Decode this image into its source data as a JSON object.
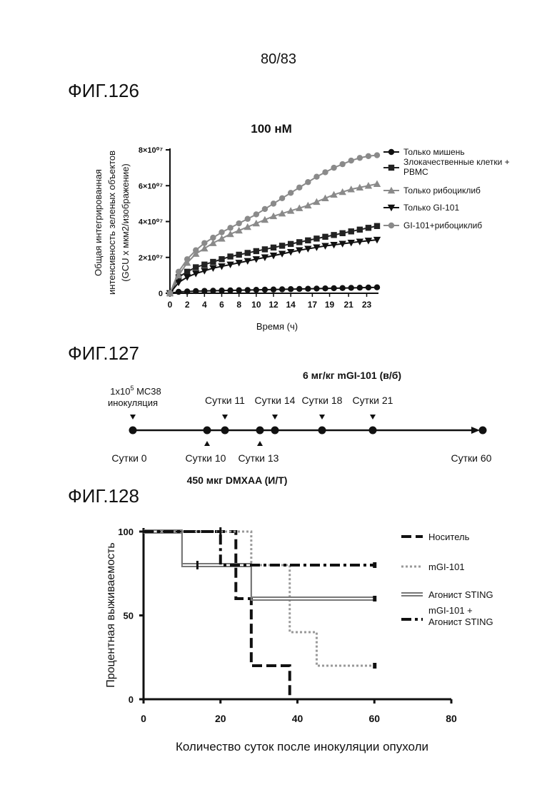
{
  "page": {
    "number": "80/83"
  },
  "fig126": {
    "label": "ФИГ.126",
    "chart_data": {
      "type": "line",
      "title": "100 нМ",
      "xlabel": "Время (ч)",
      "ylabel_line1": "Общая интегрированная",
      "ylabel_line2": "интенсивность зеленых объектов",
      "ylabel_line3": "(GCU x мкм2/изображение)",
      "xticks": [
        "0",
        "2",
        "4",
        "6",
        "8",
        "10",
        "12",
        "14",
        "17",
        "19",
        "21",
        "23"
      ],
      "yticks": [
        "0",
        "2×10⁰⁷",
        "4×10⁰⁷",
        "6×10⁰⁷",
        "8×10⁰⁷"
      ],
      "ylim": [
        0,
        80000000
      ],
      "xlim": [
        0,
        24
      ],
      "legend_position": "right",
      "series": [
        {
          "name": "Только мишень",
          "marker": "circle",
          "color": "#111111",
          "x": [
            0,
            1,
            2,
            3,
            4,
            5,
            6,
            7,
            8,
            9,
            10,
            11,
            12,
            13,
            14,
            15,
            16,
            17,
            18,
            19,
            20,
            21,
            22,
            23,
            24
          ],
          "y": [
            0,
            800000,
            1000000,
            1200000,
            1300000,
            1400000,
            1500000,
            1600000,
            1700000,
            1800000,
            1900000,
            2000000,
            2100000,
            2200000,
            2300000,
            2400000,
            2500000,
            2600000,
            2700000,
            2800000,
            2900000,
            3000000,
            3100000,
            3200000,
            3300000
          ]
        },
        {
          "name": "Злокачественные клетки + PBMC",
          "marker": "square",
          "color": "#222222",
          "x": [
            0,
            1,
            2,
            3,
            4,
            5,
            6,
            7,
            8,
            9,
            10,
            11,
            12,
            13,
            14,
            15,
            16,
            17,
            18,
            19,
            20,
            21,
            22,
            23,
            24
          ],
          "y": [
            0,
            9000000,
            12000000,
            14500000,
            16000000,
            17500000,
            19000000,
            20500000,
            21500000,
            22500000,
            23500000,
            24500000,
            25500000,
            26500000,
            27500000,
            28500000,
            29500000,
            30500000,
            31500000,
            32500000,
            33500000,
            34500000,
            35500000,
            36500000,
            37500000
          ]
        },
        {
          "name": "Только рибоциклиб",
          "marker": "triangle-up",
          "color": "#8a8a8a",
          "x": [
            0,
            1,
            2,
            3,
            4,
            5,
            6,
            7,
            8,
            9,
            10,
            11,
            12,
            13,
            14,
            15,
            16,
            17,
            18,
            19,
            20,
            21,
            22,
            23,
            24
          ],
          "y": [
            0,
            10000000,
            17000000,
            22000000,
            25000000,
            28000000,
            30500000,
            33000000,
            35000000,
            37000000,
            39000000,
            41000000,
            43000000,
            44500000,
            46000000,
            47500000,
            49000000,
            51000000,
            53000000,
            55000000,
            56500000,
            58000000,
            59000000,
            60000000,
            61000000
          ]
        },
        {
          "name": "Только GI-101",
          "marker": "triangle-down",
          "color": "#111111",
          "x": [
            0,
            1,
            2,
            3,
            4,
            5,
            6,
            7,
            8,
            9,
            10,
            11,
            12,
            13,
            14,
            15,
            16,
            17,
            18,
            19,
            20,
            21,
            22,
            23,
            24
          ],
          "y": [
            0,
            6000000,
            9000000,
            11000000,
            12500000,
            14000000,
            15000000,
            16000000,
            17000000,
            18000000,
            19000000,
            20000000,
            21000000,
            22000000,
            23000000,
            24000000,
            24800000,
            25600000,
            26400000,
            27000000,
            27600000,
            28200000,
            28800000,
            29300000,
            29800000
          ]
        },
        {
          "name": "GI-101+рибоциклиб",
          "marker": "circle",
          "color": "#8a8a8a",
          "x": [
            0,
            1,
            2,
            3,
            4,
            5,
            6,
            7,
            8,
            9,
            10,
            11,
            12,
            13,
            14,
            15,
            16,
            17,
            18,
            19,
            20,
            21,
            22,
            23,
            24
          ],
          "y": [
            0,
            12000000,
            19000000,
            24000000,
            28000000,
            31000000,
            34000000,
            36500000,
            39000000,
            41500000,
            44000000,
            47000000,
            50000000,
            53000000,
            56000000,
            59000000,
            62000000,
            65000000,
            67500000,
            70000000,
            72000000,
            74000000,
            75500000,
            76500000,
            77000000
          ]
        }
      ]
    }
  },
  "fig127": {
    "label": "ФИГ.127",
    "top_header": "6 мг/кг mGI-101 (в/б)",
    "inoc_line1": "1x10",
    "inoc_sup": "5",
    "inoc_line1b": " MC38",
    "inoc_line2": "инокуляция",
    "top_days": [
      {
        "label": "Сутки 11",
        "day": 11
      },
      {
        "label": "Сутки 14",
        "day": 14
      },
      {
        "label": "Сутки 18",
        "day": 18
      },
      {
        "label": "Сутки 21",
        "day": 21
      }
    ],
    "bottom_days": [
      {
        "label": "Сутки 10",
        "day": 10
      },
      {
        "label": "Сутки 13",
        "day": 13
      }
    ],
    "start_label": "Сутки 0",
    "end_label": "Сутки 60",
    "bottom_header": "450 мкг DMXAA (И/Т)"
  },
  "fig128": {
    "label": "ФИГ.128",
    "chart_data": {
      "type": "line",
      "subtype": "survival-step",
      "xlabel": "Количество суток после инокуляции опухоли",
      "ylabel": "Процентная выживаемость",
      "xticks": [
        "0",
        "20",
        "40",
        "60",
        "80"
      ],
      "yticks": [
        "0",
        "50",
        "100"
      ],
      "xlim": [
        0,
        80
      ],
      "ylim": [
        0,
        100
      ],
      "legend_position": "right",
      "series": [
        {
          "name": "Носитель",
          "style": "dashed",
          "color": "#111111",
          "x": [
            0,
            24,
            24,
            28,
            28,
            38,
            38
          ],
          "y": [
            100,
            100,
            60,
            60,
            20,
            20,
            0
          ]
        },
        {
          "name": "mGI-101",
          "style": "dotted",
          "color": "#999999",
          "x": [
            0,
            28,
            28,
            38,
            38,
            45,
            45,
            60
          ],
          "y": [
            100,
            100,
            80,
            80,
            40,
            40,
            20,
            20
          ]
        },
        {
          "name": "Агонист STING",
          "style": "double",
          "color": "#777777",
          "x": [
            0,
            10,
            10,
            28,
            28,
            60
          ],
          "y": [
            100,
            100,
            80,
            80,
            60,
            60
          ]
        },
        {
          "name": "mGI-101 + Агонист STING",
          "style": "dashdot",
          "color": "#111111",
          "x": [
            0,
            20,
            20,
            60
          ],
          "y": [
            100,
            100,
            80,
            80
          ]
        }
      ]
    }
  }
}
